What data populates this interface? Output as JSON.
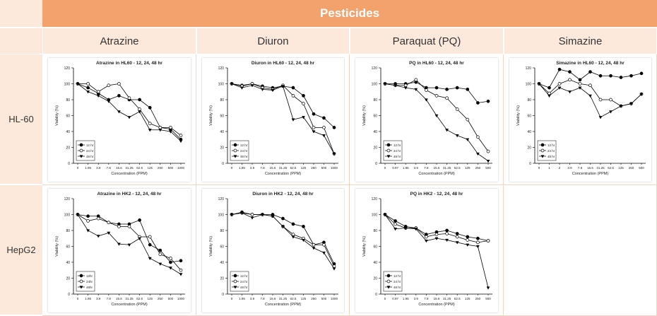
{
  "table": {
    "title": "Pesticides",
    "columns": [
      "Atrazine",
      "Diuron",
      "Paraquat (PQ)",
      "Simazine"
    ],
    "rows": [
      "HL-60",
      "HepG2"
    ]
  },
  "chart_data": [
    {
      "type": "line",
      "title": "Atrazine in HL60 - 12, 24, 48 hr",
      "x_label": "Concentration (PPM)",
      "y_label": "Viability (%)",
      "categories": [
        "0",
        "1.95",
        "3.9",
        "7.8",
        "15.6",
        "31.25",
        "62.5",
        "125",
        "250",
        "500",
        "1000"
      ],
      "ylim": [
        0,
        120
      ],
      "yticks": [
        0,
        20,
        40,
        60,
        80,
        100,
        120
      ],
      "series": [
        {
          "name": "12 hr",
          "color": "#000000",
          "values": [
            100,
            95,
            88,
            80,
            85,
            80,
            80,
            70,
            45,
            43,
            30
          ]
        },
        {
          "name": "24 hr",
          "color": "#000000",
          "values": [
            100,
            100,
            90,
            98,
            100,
            82,
            68,
            50,
            45,
            45,
            35
          ]
        },
        {
          "name": "48 hr",
          "color": "#000000",
          "values": [
            100,
            90,
            85,
            78,
            65,
            58,
            65,
            42,
            42,
            40,
            28
          ]
        }
      ]
    },
    {
      "type": "line",
      "title": "Diuron in HL60 - 12, 24, 48 hr",
      "x_label": "Concentration (PPM)",
      "y_label": "Viability (%)",
      "categories": [
        "0",
        "1.95",
        "3.9",
        "7.8",
        "15.6",
        "31.25",
        "62.5",
        "125",
        "250",
        "500",
        "1000"
      ],
      "ylim": [
        0,
        120
      ],
      "yticks": [
        0,
        20,
        40,
        60,
        80,
        100,
        120
      ],
      "series": [
        {
          "name": "12 hr",
          "color": "#000000",
          "values": [
            100,
            98,
            100,
            97,
            95,
            97,
            95,
            85,
            62,
            57,
            45
          ]
        },
        {
          "name": "24 hr",
          "color": "#000000",
          "values": [
            100,
            97,
            100,
            95,
            93,
            98,
            85,
            75,
            45,
            45,
            12
          ]
        },
        {
          "name": "48 hr",
          "color": "#000000",
          "values": [
            100,
            95,
            98,
            93,
            92,
            97,
            55,
            58,
            40,
            35,
            12
          ]
        }
      ]
    },
    {
      "type": "line",
      "title": "PQ in HL60 - 12, 24, 48 hr",
      "x_label": "Concentration (PPM)",
      "y_label": "Viability (%)",
      "categories": [
        "0",
        "0.97",
        "1.95",
        "3.9",
        "7.8",
        "15.6",
        "31.25",
        "62.5",
        "125",
        "250",
        "500"
      ],
      "ylim": [
        0,
        120
      ],
      "yticks": [
        0,
        20,
        40,
        60,
        80,
        100,
        120
      ],
      "series": [
        {
          "name": "12 hr",
          "color": "#000000",
          "values": [
            100,
            100,
            100,
            102,
            95,
            95,
            93,
            95,
            93,
            76,
            78
          ]
        },
        {
          "name": "24 hr",
          "color": "#000000",
          "values": [
            100,
            98,
            98,
            105,
            92,
            85,
            82,
            68,
            55,
            33,
            15
          ]
        },
        {
          "name": "48 hr",
          "color": "#000000",
          "values": [
            100,
            98,
            95,
            93,
            80,
            60,
            42,
            35,
            30,
            12,
            3
          ]
        }
      ]
    },
    {
      "type": "line",
      "title": "Simazine in HL60 - 12, 24, 48 hr",
      "x_label": "Concentration (PPM)",
      "y_label": "Viability (%)",
      "categories": [
        "0",
        "1",
        "2",
        "3.9",
        "7.8",
        "15.6",
        "31.25",
        "62.5",
        "125",
        "250",
        "500"
      ],
      "ylim": [
        0,
        120
      ],
      "yticks": [
        0,
        20,
        40,
        60,
        80,
        100,
        120
      ],
      "series": [
        {
          "name": "12 hr",
          "color": "#000000",
          "values": [
            100,
            95,
            118,
            115,
            105,
            115,
            110,
            110,
            108,
            110,
            113
          ]
        },
        {
          "name": "24 hr",
          "color": "#000000",
          "values": [
            100,
            88,
            100,
            105,
            100,
            98,
            80,
            80,
            72,
            75,
            87
          ]
        },
        {
          "name": "48 hr",
          "color": "#000000",
          "values": [
            100,
            85,
            95,
            90,
            95,
            85,
            58,
            65,
            72,
            75,
            87
          ]
        }
      ]
    },
    {
      "type": "line",
      "title": "Atrazine in HK2 - 12, 24, 48 hr",
      "x_label": "Concentration (PPM)",
      "y_label": "Viability (%)",
      "categories": [
        "0",
        "1.95",
        "3.9",
        "7.8",
        "15.6",
        "31.25",
        "62.5",
        "125",
        "250",
        "500",
        "1000"
      ],
      "ylim": [
        0,
        120
      ],
      "yticks": [
        0,
        20,
        40,
        60,
        80,
        100,
        120
      ],
      "series": [
        {
          "name": "12hr",
          "color": "#000000",
          "values": [
            100,
            98,
            98,
            90,
            88,
            88,
            93,
            62,
            55,
            40,
            42
          ]
        },
        {
          "name": "24hr",
          "color": "#000000",
          "values": [
            100,
            92,
            95,
            90,
            85,
            85,
            72,
            72,
            50,
            45,
            30
          ]
        },
        {
          "name": "48hr",
          "color": "#000000",
          "values": [
            100,
            80,
            73,
            77,
            63,
            62,
            70,
            45,
            38,
            33,
            25
          ]
        }
      ]
    },
    {
      "type": "line",
      "title": "Diuron in HK2 - 12, 24, 48 hr",
      "x_label": "Concentration (PPM)",
      "y_label": "Viability (%)",
      "categories": [
        "0",
        "1.95",
        "3.9",
        "7.8",
        "15.6",
        "31.25",
        "62.5",
        "125",
        "250",
        "500",
        "1000"
      ],
      "ylim": [
        0,
        120
      ],
      "yticks": [
        0,
        20,
        40,
        60,
        80,
        100,
        120
      ],
      "series": [
        {
          "name": "12 hr",
          "color": "#000000",
          "values": [
            100,
            103,
            100,
            100,
            100,
            95,
            88,
            85,
            62,
            65,
            38
          ]
        },
        {
          "name": "24 hr",
          "color": "#000000",
          "values": [
            100,
            102,
            100,
            100,
            98,
            85,
            75,
            70,
            62,
            62,
            35
          ]
        },
        {
          "name": "48 hr",
          "color": "#000000",
          "values": [
            100,
            102,
            96,
            100,
            98,
            85,
            72,
            68,
            58,
            52,
            32
          ]
        }
      ]
    },
    {
      "type": "line",
      "title": "PQ in HK2 - 12, 24, 48 hr",
      "x_label": "Concentration (PPM)",
      "y_label": "Viability (%)",
      "categories": [
        "0",
        "0.97",
        "1.95",
        "3.9",
        "7.8",
        "15.6",
        "31.25",
        "62.5",
        "125",
        "250",
        "500"
      ],
      "ylim": [
        0,
        120
      ],
      "yticks": [
        0,
        20,
        40,
        60,
        80,
        100,
        120
      ],
      "series": [
        {
          "name": "12 hr",
          "color": "#000000",
          "values": [
            100,
            92,
            85,
            83,
            75,
            78,
            80,
            76,
            72,
            70,
            67
          ]
        },
        {
          "name": "24 hr",
          "color": "#000000",
          "values": [
            100,
            88,
            83,
            83,
            72,
            75,
            76,
            72,
            68,
            65,
            67
          ]
        },
        {
          "name": "48 hr",
          "color": "#000000",
          "values": [
            100,
            82,
            83,
            82,
            67,
            70,
            68,
            65,
            62,
            60,
            8
          ]
        }
      ]
    }
  ]
}
